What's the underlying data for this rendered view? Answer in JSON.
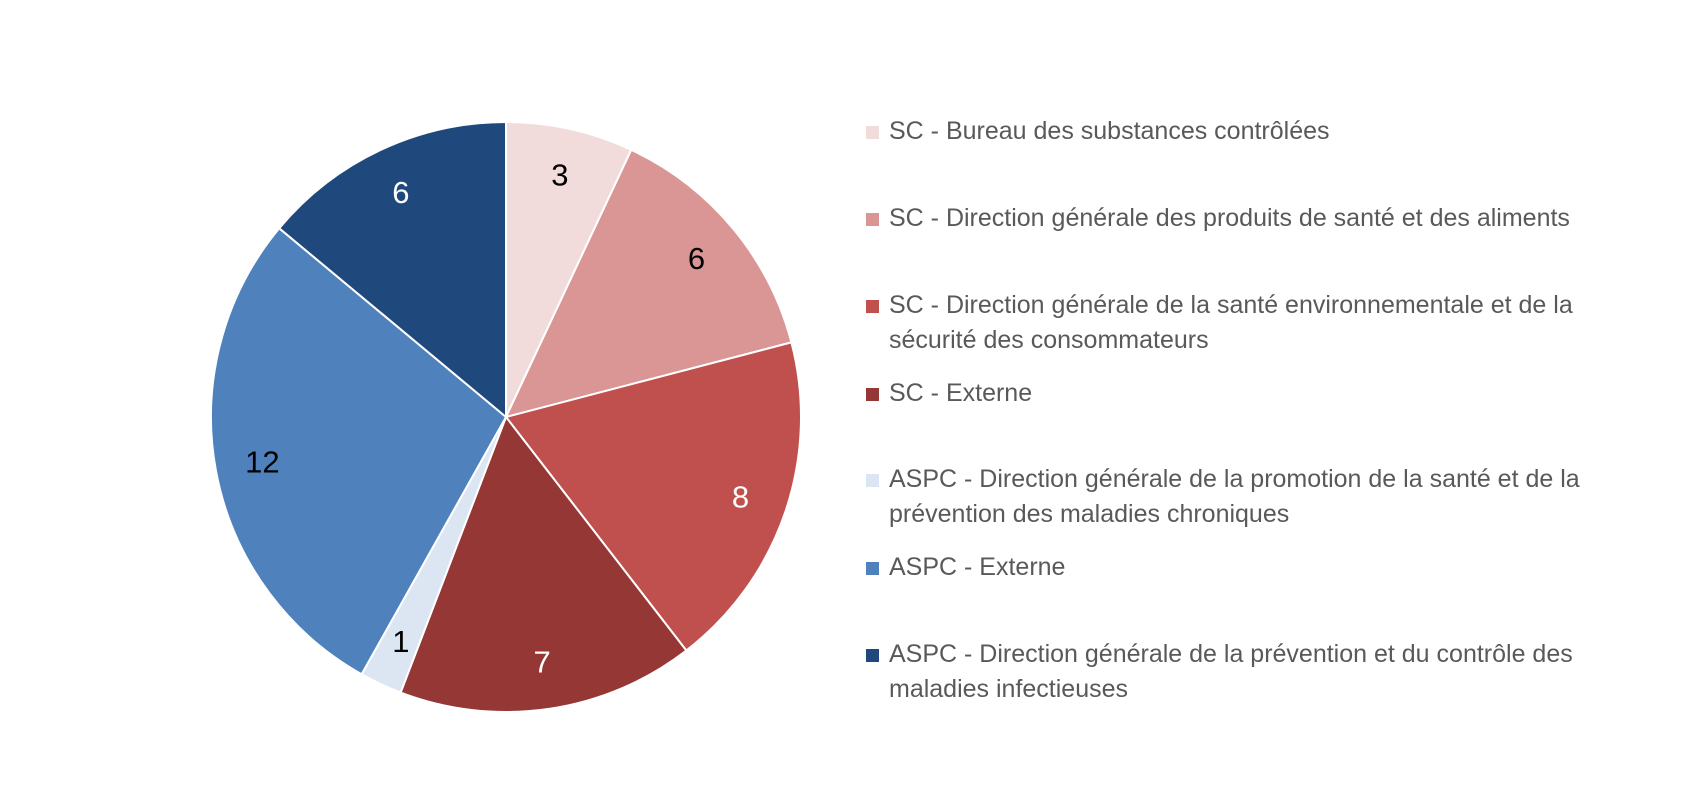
{
  "chart_data": {
    "type": "pie",
    "start_angle_deg": 0,
    "direction": "clockwise",
    "slice_border_color": "#ffffff",
    "slices": [
      {
        "label": "SC - Bureau des substances contrôlées",
        "value": 3,
        "color": "#F2DCDB",
        "label_color": "#000000"
      },
      {
        "label": "SC - Direction générale des produits de santé et des aliments",
        "value": 6,
        "color": "#D99694",
        "label_color": "#000000"
      },
      {
        "label": "SC - Direction générale de la santé environnementale et de la sécurité des consommateurs",
        "value": 8,
        "color": "#C0504D",
        "label_color": "#ffffff"
      },
      {
        "label": "SC - Externe",
        "value": 7,
        "color": "#953735",
        "label_color": "#ffffff"
      },
      {
        "label": "ASPC - Direction générale de la promotion de la santé et de la prévention des maladies chroniques",
        "value": 1,
        "color": "#DCE6F2",
        "label_color": "#000000"
      },
      {
        "label": "ASPC - Externe",
        "value": 12,
        "color": "#4F81BD",
        "label_color": "#000000"
      },
      {
        "label": "ASPC - Direction générale de la prévention et du contrôle des maladies infectieuses",
        "value": 6,
        "color": "#1F497D",
        "label_color": "#ffffff"
      }
    ],
    "legend_placement": "right"
  }
}
